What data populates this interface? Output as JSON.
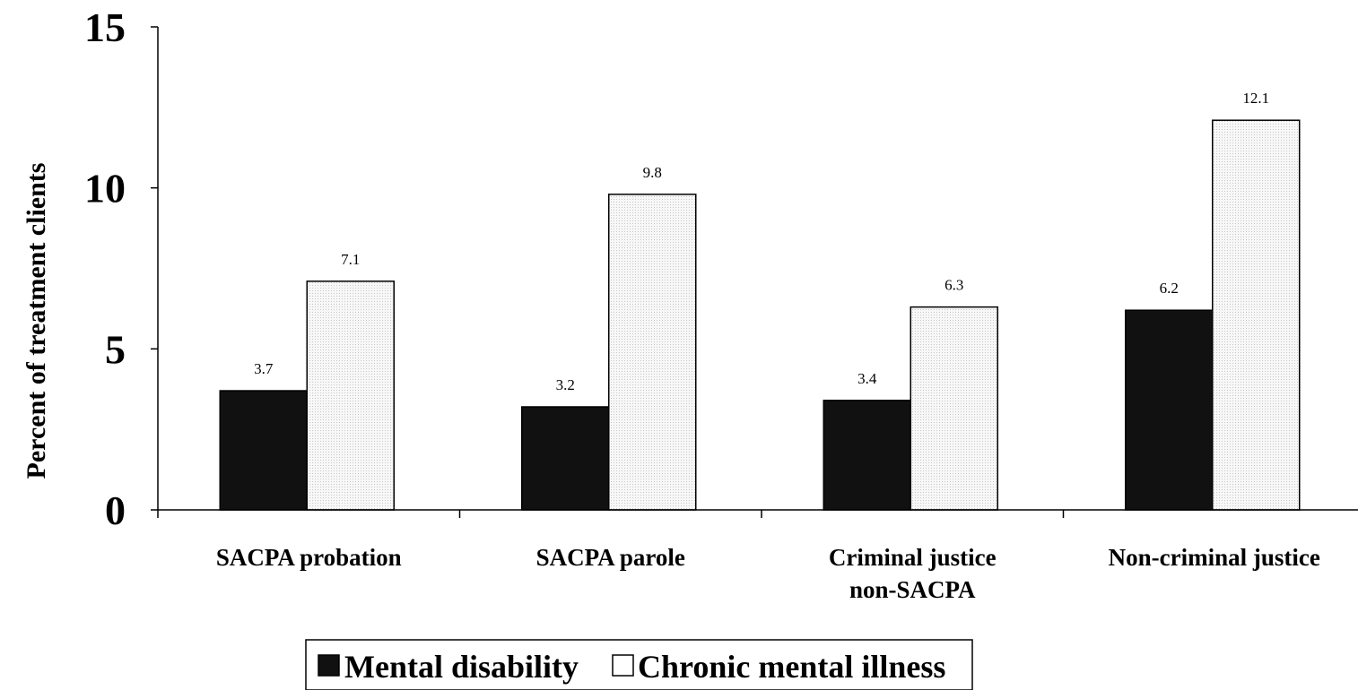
{
  "chart_data": {
    "type": "bar",
    "title": "",
    "xlabel": "",
    "ylabel": "Percent of treatment clients",
    "ylim": [
      0,
      15
    ],
    "yticks": [
      0,
      5,
      10,
      15
    ],
    "grid": false,
    "legend_position": "bottom",
    "categories": [
      [
        "SACPA probation"
      ],
      [
        "SACPA parole"
      ],
      [
        "Criminal justice",
        "non-SACPA"
      ],
      [
        "Non-criminal justice"
      ]
    ],
    "series": [
      {
        "name": "Mental disability",
        "values": [
          3.7,
          3.2,
          3.4,
          6.2
        ],
        "color": "#111111"
      },
      {
        "name": "Chronic mental illness",
        "values": [
          7.1,
          9.8,
          6.3,
          12.1
        ],
        "color": "#f4f4f4"
      }
    ]
  }
}
